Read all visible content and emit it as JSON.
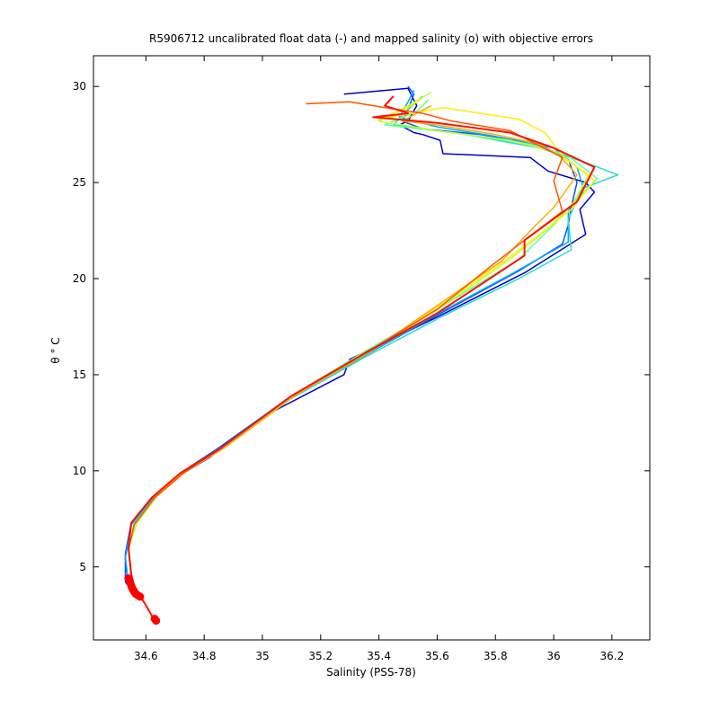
{
  "chart_data": {
    "type": "line",
    "title": "R5906712 uncalibrated float data (-) and mapped salinity (o) with objective errors",
    "xlabel": "Salinity (PSS-78)",
    "ylabel": "θ ° C",
    "xlim": [
      34.42,
      36.33
    ],
    "ylim": [
      1.2,
      31.6
    ],
    "xticks": [
      34.6,
      34.8,
      35,
      35.2,
      35.4,
      35.6,
      35.8,
      36,
      36.2
    ],
    "xtick_labels": [
      "34.6",
      "34.8",
      "35",
      "35.2",
      "35.4",
      "35.6",
      "35.8",
      "36",
      "36.2"
    ],
    "yticks": [
      5,
      10,
      15,
      20,
      25,
      30
    ],
    "ytick_labels": [
      "5",
      "10",
      "15",
      "20",
      "25",
      "30"
    ],
    "grid": false,
    "legend": "none",
    "series": [
      {
        "color": "#0000cc",
        "x": [
          35.28,
          35.5,
          35.53,
          35.5,
          35.47,
          35.52,
          35.55,
          35.61,
          35.62,
          35.92,
          35.98,
          36.11,
          36.14,
          36.09,
          36.11,
          35.9,
          35.6,
          35.3,
          35.28,
          35.0,
          34.82,
          34.72,
          34.62,
          34.55,
          34.53,
          34.53,
          34.58
        ],
        "y": [
          29.6,
          29.9,
          29.0,
          28.2,
          28.0,
          27.6,
          27.5,
          27.2,
          26.5,
          26.3,
          25.6,
          25.0,
          24.5,
          23.6,
          22.3,
          20.3,
          18.0,
          15.8,
          15.0,
          12.8,
          10.7,
          9.8,
          8.5,
          7.3,
          5.7,
          4.3,
          3.5
        ]
      },
      {
        "color": "#0055ff",
        "x": [
          35.5,
          35.52,
          35.5,
          35.48,
          35.55,
          35.75,
          35.95,
          36.05,
          36.08,
          36.06,
          36.05,
          36.03,
          35.88,
          35.6,
          35.35,
          35.1,
          34.85,
          34.72,
          34.62,
          34.55,
          34.53,
          34.53,
          34.57
        ],
        "y": [
          30.0,
          29.6,
          28.8,
          28.2,
          27.8,
          27.5,
          27.0,
          26.2,
          25.0,
          23.7,
          22.8,
          21.8,
          20.4,
          18.1,
          16.0,
          13.9,
          11.2,
          9.9,
          8.6,
          7.2,
          5.6,
          4.2,
          3.4
        ]
      },
      {
        "color": "#00aaff",
        "x": [
          35.52,
          35.5,
          35.47,
          35.6,
          35.8,
          36.0,
          36.08,
          36.1,
          36.05,
          36.05,
          35.85,
          35.58,
          35.33,
          35.08,
          34.84,
          34.72,
          34.62,
          34.55,
          34.53,
          34.54,
          34.58
        ],
        "y": [
          29.8,
          29.2,
          28.4,
          27.9,
          27.4,
          26.8,
          25.8,
          24.8,
          23.5,
          21.9,
          20.2,
          18.0,
          15.8,
          13.7,
          11.0,
          9.8,
          8.5,
          7.2,
          5.5,
          4.1,
          3.3
        ]
      },
      {
        "color": "#22ddcc",
        "x": [
          35.55,
          35.5,
          35.45,
          35.7,
          35.95,
          36.1,
          36.22,
          36.1,
          36.05,
          36.06,
          35.88,
          35.6,
          35.35,
          35.08,
          34.85,
          34.72,
          34.63,
          34.56,
          34.54,
          34.55,
          34.58
        ],
        "y": [
          29.5,
          28.8,
          28.0,
          27.5,
          26.8,
          26.1,
          25.4,
          24.7,
          23.1,
          21.5,
          20.0,
          17.9,
          15.9,
          13.6,
          11.0,
          9.9,
          8.6,
          7.3,
          5.8,
          4.3,
          3.5
        ]
      },
      {
        "color": "#66ff99",
        "x": [
          35.57,
          35.53,
          35.42,
          35.65,
          35.92,
          36.05,
          36.15,
          36.07,
          36.0,
          35.88,
          35.6,
          35.35,
          35.1,
          34.86,
          34.73,
          34.63,
          34.56,
          34.54,
          34.55,
          34.58
        ],
        "y": [
          29.3,
          28.7,
          28.0,
          27.6,
          27.0,
          26.4,
          25.2,
          24.0,
          22.8,
          21.0,
          18.4,
          16.2,
          13.9,
          11.1,
          9.9,
          8.6,
          7.2,
          5.9,
          4.4,
          3.5
        ]
      },
      {
        "color": "#bbff33",
        "x": [
          35.58,
          35.5,
          35.4,
          35.6,
          35.85,
          36.0,
          36.12,
          36.07,
          35.98,
          35.85,
          35.62,
          35.38,
          35.12,
          34.88,
          34.74,
          34.64,
          34.57,
          34.54,
          34.55
        ],
        "y": [
          29.7,
          29.0,
          28.2,
          27.7,
          27.2,
          26.6,
          25.4,
          24.0,
          22.6,
          21.0,
          18.6,
          16.3,
          14.0,
          11.3,
          10.0,
          8.7,
          7.3,
          6.0,
          4.5
        ]
      },
      {
        "color": "#ffee00",
        "x": [
          35.55,
          35.5,
          35.4,
          35.62,
          35.88,
          35.97,
          36.03,
          36.14,
          36.06,
          35.96,
          35.83,
          35.6,
          35.38,
          35.12,
          34.86,
          34.73,
          34.63,
          34.56,
          34.54
        ],
        "y": [
          29.4,
          28.9,
          28.3,
          28.9,
          28.3,
          27.6,
          26.4,
          25.1,
          23.6,
          22.4,
          20.9,
          18.5,
          16.3,
          14.1,
          11.2,
          10.0,
          8.6,
          7.2,
          5.9
        ]
      },
      {
        "color": "#ffaa00",
        "x": [
          35.58,
          35.53,
          35.48,
          35.6,
          35.8,
          35.95,
          36.02,
          36.08,
          36.0,
          35.92,
          35.82,
          35.6,
          35.37,
          35.12,
          34.87,
          34.74,
          34.63,
          34.56,
          34.54
        ],
        "y": [
          29.0,
          28.6,
          28.2,
          28.0,
          27.5,
          27.0,
          26.4,
          25.4,
          23.7,
          22.5,
          20.9,
          18.6,
          16.2,
          14.0,
          11.2,
          10.0,
          8.6,
          7.2,
          5.9
        ]
      },
      {
        "color": "#ff5500",
        "x": [
          35.15,
          35.3,
          35.42,
          35.55,
          35.65,
          35.85,
          36.03,
          36.0,
          36.03,
          35.9,
          35.78,
          35.6,
          35.35,
          35.1,
          34.86,
          34.73,
          34.63,
          34.56,
          34.54
        ],
        "y": [
          29.1,
          29.2,
          28.9,
          28.6,
          28.2,
          27.7,
          26.3,
          25.1,
          23.5,
          22.0,
          20.6,
          18.4,
          16.1,
          13.9,
          11.2,
          9.9,
          8.6,
          7.2,
          5.9
        ]
      },
      {
        "color": "#ff1100",
        "x": [
          35.45,
          35.42,
          35.5,
          35.38,
          35.6,
          35.85,
          36.0,
          36.14,
          36.08,
          35.9,
          35.9,
          35.8,
          35.6,
          35.35,
          35.1,
          34.85,
          34.72,
          34.62,
          34.55,
          34.54,
          34.55,
          34.56,
          34.58,
          34.6,
          34.63
        ],
        "y": [
          29.5,
          29.0,
          28.6,
          28.4,
          28.1,
          27.6,
          26.8,
          25.8,
          24.0,
          22.0,
          21.2,
          20.2,
          18.2,
          16.1,
          13.9,
          11.1,
          9.9,
          8.6,
          7.3,
          6.0,
          4.6,
          4.0,
          3.5,
          3.0,
          2.2
        ]
      }
    ],
    "mapped_salinity_points": {
      "color": "#ff0000",
      "x": [
        34.54,
        34.545,
        34.55,
        34.553,
        34.556,
        34.56,
        34.565,
        34.57,
        34.575,
        34.58,
        34.63,
        34.635
      ],
      "y": [
        4.4,
        4.2,
        4.0,
        3.9,
        3.8,
        3.7,
        3.6,
        3.55,
        3.5,
        3.45,
        2.3,
        2.2
      ]
    }
  }
}
